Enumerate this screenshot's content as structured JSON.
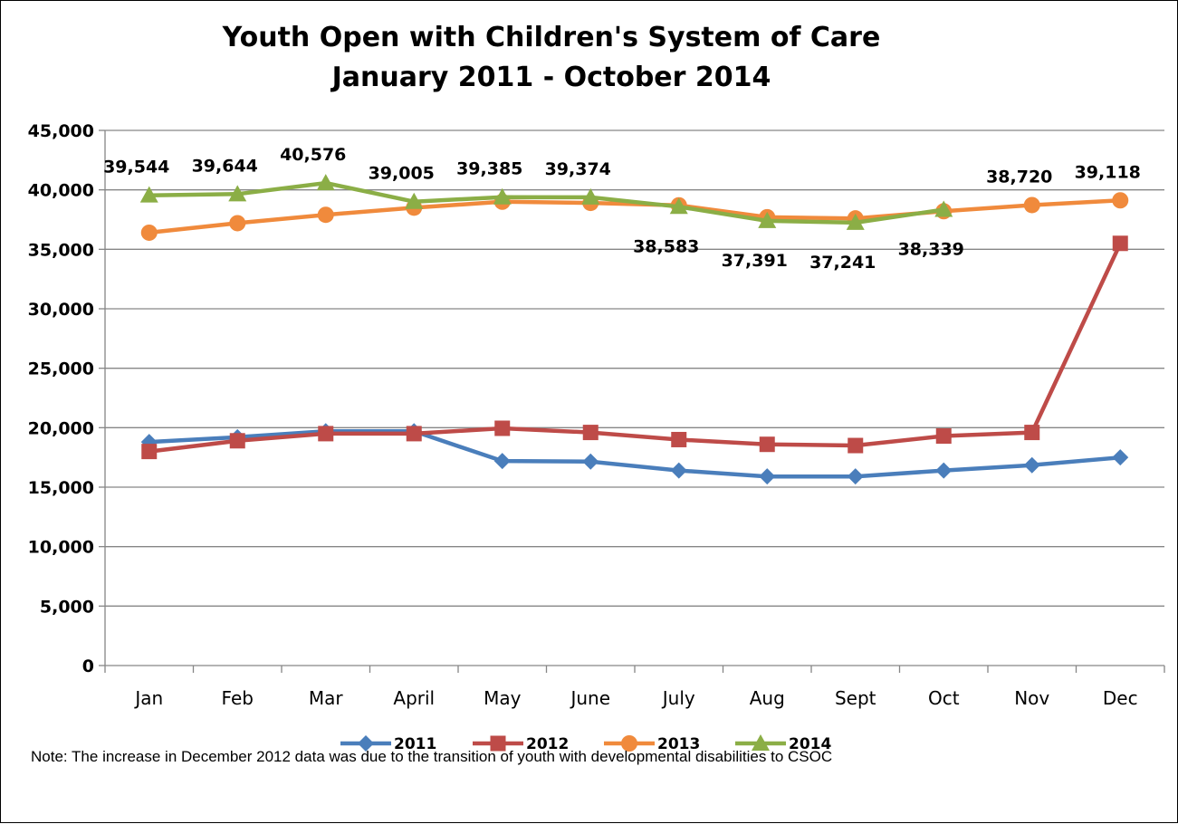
{
  "chart_data": {
    "type": "line",
    "title": "Youth Open with Children's System of Care",
    "subtitle": "January 2011 - October 2014",
    "categories": [
      "Jan",
      "Feb",
      "Mar",
      "April",
      "May",
      "June",
      "July",
      "Aug",
      "Sept",
      "Oct",
      "Nov",
      "Dec"
    ],
    "ylim": [
      0,
      45000
    ],
    "yticks": [
      0,
      5000,
      10000,
      15000,
      20000,
      25000,
      30000,
      35000,
      40000,
      45000
    ],
    "ytick_labels": [
      "0",
      "5,000",
      "10,000",
      "15,000",
      "20,000",
      "25,000",
      "30,000",
      "35,000",
      "40,000",
      "45,000"
    ],
    "grid": "horizontal",
    "legend_position": "bottom",
    "series": [
      {
        "name": "2011",
        "color": "#4A7EBB",
        "marker": "diamond",
        "values": [
          18800,
          19200,
          19700,
          19700,
          17200,
          17150,
          16400,
          15900,
          15900,
          16400,
          16850,
          17500
        ]
      },
      {
        "name": "2012",
        "color": "#BE4B48",
        "marker": "square",
        "values": [
          18000,
          18900,
          19500,
          19500,
          19950,
          19600,
          19000,
          18600,
          18500,
          19300,
          19600,
          35500
        ]
      },
      {
        "name": "2013",
        "color": "#F08A3C",
        "marker": "circle",
        "values": [
          36400,
          37200,
          37900,
          38500,
          39000,
          38900,
          38700,
          37700,
          37600,
          38200,
          38720,
          39118
        ],
        "data_labels": [
          null,
          null,
          null,
          null,
          null,
          null,
          null,
          null,
          null,
          null,
          "38,720",
          "39,118"
        ]
      },
      {
        "name": "2014",
        "color": "#8BAE46",
        "marker": "triangle",
        "values": [
          39544,
          39644,
          40576,
          39005,
          39385,
          39374,
          38583,
          37391,
          37241,
          38339,
          null,
          null
        ],
        "data_labels": [
          "39,544",
          "39,644",
          "40,576",
          "39,005",
          "39,385",
          "39,374",
          "38,583",
          "37,391",
          "37,241",
          "38,339",
          null,
          null
        ]
      }
    ],
    "note": "Note: The increase in December 2012 data was due to the transition of youth with developmental disabilities to CSOC"
  }
}
